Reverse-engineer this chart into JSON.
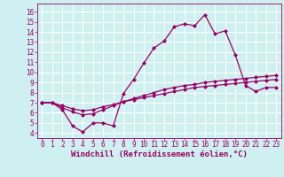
{
  "xlabel": "Windchill (Refroidissement éolien,°C)",
  "bg_color": "#cff0f0",
  "line_color": "#990066",
  "grid_color": "#ffffff",
  "xlim": [
    -0.5,
    23.5
  ],
  "ylim": [
    3.5,
    16.8
  ],
  "yticks": [
    4,
    5,
    6,
    7,
    8,
    9,
    10,
    11,
    12,
    13,
    14,
    15,
    16
  ],
  "xticks": [
    0,
    1,
    2,
    3,
    4,
    5,
    6,
    7,
    8,
    9,
    10,
    11,
    12,
    13,
    14,
    15,
    16,
    17,
    18,
    19,
    20,
    21,
    22,
    23
  ],
  "line1_x": [
    0,
    1,
    2,
    3,
    4,
    5,
    6,
    7,
    8,
    9,
    10,
    11,
    12,
    13,
    14,
    15,
    16,
    17,
    18,
    19,
    20,
    21,
    22,
    23
  ],
  "line1_y": [
    7.0,
    7.0,
    6.3,
    4.7,
    4.1,
    5.0,
    5.0,
    4.7,
    7.9,
    9.3,
    10.9,
    12.4,
    13.1,
    14.5,
    14.8,
    14.6,
    15.7,
    13.8,
    14.1,
    11.7,
    8.7,
    8.1,
    8.5,
    8.5
  ],
  "line2_x": [
    0,
    1,
    2,
    3,
    4,
    5,
    6,
    7,
    8,
    9,
    10,
    11,
    12,
    13,
    14,
    15,
    16,
    17,
    18,
    19,
    20,
    21,
    22,
    23
  ],
  "line2_y": [
    7.0,
    7.0,
    6.5,
    6.1,
    5.8,
    5.9,
    6.3,
    6.7,
    7.1,
    7.4,
    7.7,
    8.0,
    8.3,
    8.5,
    8.7,
    8.8,
    9.0,
    9.1,
    9.2,
    9.3,
    9.4,
    9.5,
    9.6,
    9.7
  ],
  "line3_x": [
    0,
    1,
    2,
    3,
    4,
    5,
    6,
    7,
    8,
    9,
    10,
    11,
    12,
    13,
    14,
    15,
    16,
    17,
    18,
    19,
    20,
    21,
    22,
    23
  ],
  "line3_y": [
    7.0,
    7.0,
    6.7,
    6.4,
    6.2,
    6.3,
    6.6,
    6.8,
    7.1,
    7.3,
    7.5,
    7.7,
    7.9,
    8.1,
    8.3,
    8.5,
    8.6,
    8.7,
    8.8,
    8.9,
    9.0,
    9.1,
    9.2,
    9.3
  ],
  "marker": "D",
  "markersize": 2,
  "linewidth": 0.9,
  "tick_fontsize": 5.5,
  "xlabel_fontsize": 6.5
}
